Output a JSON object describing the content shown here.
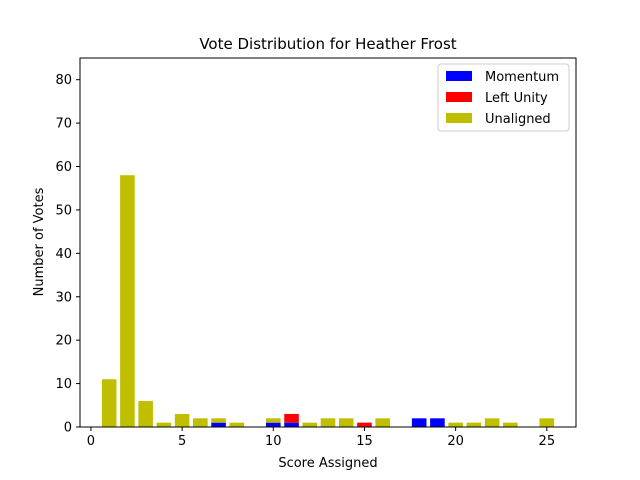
{
  "chart_data": {
    "type": "bar",
    "stacked": true,
    "title": "Vote Distribution for Heather Frost",
    "xlabel": "Score Assigned",
    "ylabel": "Number of Votes",
    "xlim": [
      -0.6,
      26.6
    ],
    "ylim": [
      0,
      85
    ],
    "xticks": [
      0,
      5,
      10,
      15,
      20,
      25
    ],
    "yticks": [
      0,
      10,
      20,
      30,
      40,
      50,
      60,
      70,
      80
    ],
    "legend_position": "top-right",
    "grid": false,
    "x": [
      1,
      2,
      3,
      4,
      5,
      6,
      7,
      8,
      9,
      10,
      11,
      12,
      13,
      14,
      15,
      16,
      17,
      18,
      19,
      20,
      21,
      22,
      23,
      24,
      25
    ],
    "series": [
      {
        "name": "Momentum",
        "color": "#0000ff",
        "values": [
          0,
          0,
          0,
          0,
          0,
          0,
          1,
          0,
          0,
          1,
          1,
          0,
          0,
          0,
          0,
          0,
          0,
          2,
          2,
          0,
          0,
          0,
          0,
          0,
          0
        ]
      },
      {
        "name": "Left Unity",
        "color": "#ff0000",
        "values": [
          0,
          0,
          0,
          0,
          0,
          0,
          0,
          0,
          0,
          0,
          2,
          0,
          0,
          0,
          1,
          0,
          0,
          0,
          0,
          0,
          0,
          0,
          0,
          0,
          0
        ]
      },
      {
        "name": "Unaligned",
        "color": "#bfbf00",
        "values": [
          11,
          58,
          6,
          1,
          3,
          2,
          1,
          1,
          0,
          1,
          0,
          1,
          2,
          2,
          0,
          2,
          0,
          0,
          0,
          1,
          1,
          2,
          1,
          0,
          2
        ]
      }
    ]
  }
}
